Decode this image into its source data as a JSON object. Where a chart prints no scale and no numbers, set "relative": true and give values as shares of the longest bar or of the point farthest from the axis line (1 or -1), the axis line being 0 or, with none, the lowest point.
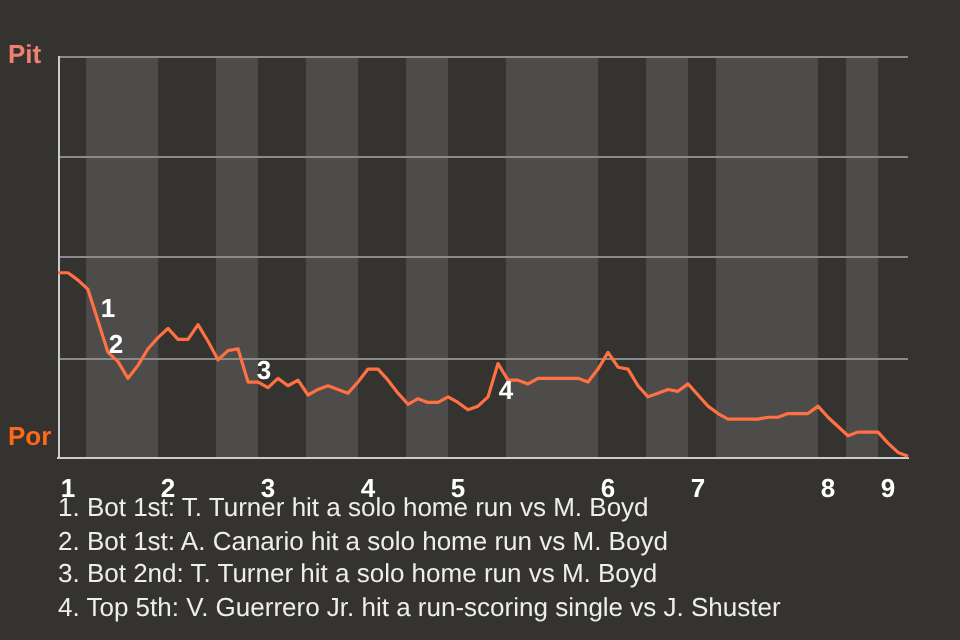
{
  "chart_data": {
    "type": "line",
    "relative": true,
    "categories": [
      null,
      "1",
      null,
      null,
      null,
      null,
      null,
      null,
      null,
      null,
      null,
      "2",
      null,
      null,
      null,
      null,
      null,
      null,
      null,
      null,
      null,
      "3",
      null,
      null,
      null,
      null,
      null,
      null,
      null,
      null,
      null,
      "4",
      null,
      null,
      null,
      null,
      null,
      null,
      null,
      null,
      "5",
      null,
      null,
      null,
      null,
      null,
      null,
      null,
      null,
      null,
      null,
      null,
      null,
      null,
      null,
      "6",
      null,
      null,
      null,
      null,
      null,
      null,
      null,
      null,
      "7",
      null,
      null,
      null,
      null,
      null,
      null,
      null,
      null,
      null,
      null,
      null,
      null,
      "8",
      null,
      null,
      null,
      null,
      null,
      "9",
      null,
      null
    ],
    "series": [
      {
        "color": "#ff7043",
        "values": [
          1,
          1,
          0.96,
          0.91,
          0.74,
          0.57,
          0.52,
          0.43,
          0.5,
          0.59,
          0.65,
          0.7,
          0.64,
          0.64,
          0.72,
          0.63,
          0.53,
          0.58,
          0.59,
          0.41,
          0.41,
          0.38,
          0.43,
          0.39,
          0.42,
          0.34,
          0.37,
          0.39,
          0.37,
          0.35,
          0.41,
          0.48,
          0.48,
          0.42,
          0.35,
          0.29,
          0.32,
          0.3,
          0.3,
          0.33,
          0.3,
          0.26,
          0.28,
          0.33,
          0.51,
          0.42,
          0.42,
          0.4,
          0.43,
          0.43,
          0.43,
          0.43,
          0.43,
          0.41,
          0.48,
          0.57,
          0.49,
          0.48,
          0.39,
          0.33,
          0.35,
          0.37,
          0.36,
          0.4,
          0.34,
          0.28,
          0.24,
          0.21,
          0.21,
          0.21,
          0.21,
          0.22,
          0.22,
          0.24,
          0.24,
          0.24,
          0.28,
          0.22,
          0.17,
          0.12,
          0.14,
          0.14,
          0.14,
          0.08,
          0.03,
          0.01
        ]
      }
    ],
    "marker": "none",
    "line_style": "solid",
    "ref_lines": [
      {
        "axis": "y",
        "value": 0.54,
        "color": "#8a8a8a"
      },
      {
        "axis": "y",
        "value": 1.09,
        "color": "#8a8a8a"
      },
      {
        "axis": "y",
        "value": 1.63,
        "color": "#8a8a8a"
      },
      {
        "axis": "y",
        "value": 2.17,
        "color": "#8a8a8a"
      }
    ],
    "annotations": [
      "Pit",
      "Por",
      "1",
      "2",
      "3",
      "4",
      "1. Bot 1st: T. Turner hit a solo home run vs M. Boyd",
      "2. Bot 1st: A. Canario hit a solo home run vs M. Boyd",
      "3. Bot 2nd: T. Turner hit a solo home run vs M. Boyd",
      "4. Top 5th: V. Guerrero Jr. hit a run-scoring single vs J. Shuster"
    ]
  }
}
